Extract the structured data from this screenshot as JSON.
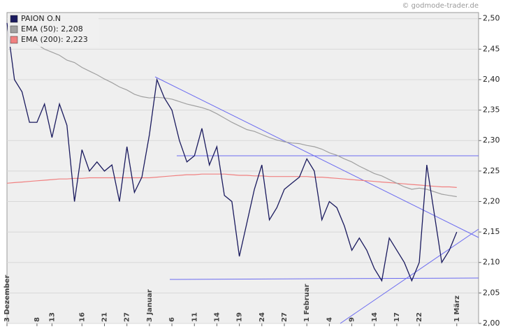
{
  "chart_data": {
    "type": "line",
    "watermark": "© godmode-trader.de",
    "categories": [
      "3 Dezember",
      null,
      null,
      null,
      "8",
      null,
      "13",
      null,
      null,
      null,
      "16",
      null,
      null,
      "21",
      null,
      null,
      "27",
      null,
      null,
      "3 Januar",
      null,
      null,
      "6",
      null,
      null,
      "11",
      null,
      null,
      "14",
      null,
      null,
      "19",
      null,
      null,
      "24",
      null,
      null,
      "27",
      null,
      null,
      "1 Februar",
      null,
      null,
      "4",
      null,
      null,
      "9",
      null,
      null,
      "14",
      null,
      null,
      "17",
      null,
      null,
      "22",
      null,
      null,
      null,
      null,
      "1 März"
    ],
    "series": [
      {
        "name": "EMA (200): 2,223",
        "color": "#f08080",
        "values": [
          2.23,
          2.231,
          2.232,
          2.233,
          2.234,
          2.235,
          2.236,
          2.237,
          2.237,
          2.238,
          2.238,
          2.239,
          2.239,
          2.239,
          2.239,
          2.239,
          2.239,
          2.239,
          2.239,
          2.239,
          2.24,
          2.241,
          2.242,
          2.243,
          2.244,
          2.244,
          2.245,
          2.245,
          2.245,
          2.245,
          2.244,
          2.243,
          2.243,
          2.242,
          2.242,
          2.241,
          2.241,
          2.241,
          2.241,
          2.241,
          2.241,
          2.24,
          2.24,
          2.239,
          2.238,
          2.237,
          2.236,
          2.235,
          2.234,
          2.233,
          2.232,
          2.231,
          2.23,
          2.229,
          2.228,
          2.227,
          2.226,
          2.225,
          2.224,
          2.224,
          2.223
        ]
      },
      {
        "name": "EMA (50): 2,208",
        "color": "#a0a0a0",
        "values": [
          2.49,
          2.48,
          2.472,
          2.465,
          2.458,
          2.45,
          2.445,
          2.44,
          2.432,
          2.428,
          2.42,
          2.414,
          2.408,
          2.401,
          2.395,
          2.388,
          2.383,
          2.376,
          2.372,
          2.37,
          2.371,
          2.37,
          2.368,
          2.364,
          2.36,
          2.357,
          2.354,
          2.35,
          2.344,
          2.337,
          2.33,
          2.324,
          2.318,
          2.315,
          2.31,
          2.305,
          2.301,
          2.298,
          2.296,
          2.295,
          2.292,
          2.29,
          2.286,
          2.28,
          2.276,
          2.27,
          2.265,
          2.258,
          2.252,
          2.246,
          2.242,
          2.236,
          2.23,
          2.224,
          2.22,
          2.222,
          2.22,
          2.216,
          2.212,
          2.21,
          2.208
        ]
      },
      {
        "name": "PAION O.N",
        "color": "#1a1a5e",
        "values": [
          2.493,
          2.4,
          2.38,
          2.33,
          2.33,
          2.36,
          2.305,
          2.36,
          2.325,
          2.2,
          2.285,
          2.25,
          2.265,
          2.25,
          2.26,
          2.2,
          2.29,
          2.215,
          2.24,
          2.31,
          2.4,
          2.37,
          2.35,
          2.3,
          2.265,
          2.275,
          2.32,
          2.26,
          2.29,
          2.21,
          2.2,
          2.11,
          2.165,
          2.22,
          2.26,
          2.17,
          2.19,
          2.22,
          2.23,
          2.24,
          2.27,
          2.25,
          2.17,
          2.2,
          2.19,
          2.16,
          2.12,
          2.14,
          2.12,
          2.09,
          2.07,
          2.14,
          2.12,
          2.1,
          2.07,
          2.1,
          2.26,
          2.18,
          2.1,
          2.12,
          2.15
        ]
      }
    ],
    "ylim": [
      2.0,
      2.51
    ],
    "yticks": [
      {
        "value": 2.0,
        "label": "2,00"
      },
      {
        "value": 2.05,
        "label": "2,05"
      },
      {
        "value": 2.1,
        "label": "2,10"
      },
      {
        "value": 2.15,
        "label": "2,15"
      },
      {
        "value": 2.2,
        "label": "2,20"
      },
      {
        "value": 2.25,
        "label": "2,25"
      },
      {
        "value": 2.3,
        "label": "2,30"
      },
      {
        "value": 2.35,
        "label": "2,35"
      },
      {
        "value": 2.4,
        "label": "2,40"
      },
      {
        "value": 2.45,
        "label": "2,45"
      },
      {
        "value": 2.5,
        "label": "2,50"
      }
    ],
    "grid": true
  }
}
